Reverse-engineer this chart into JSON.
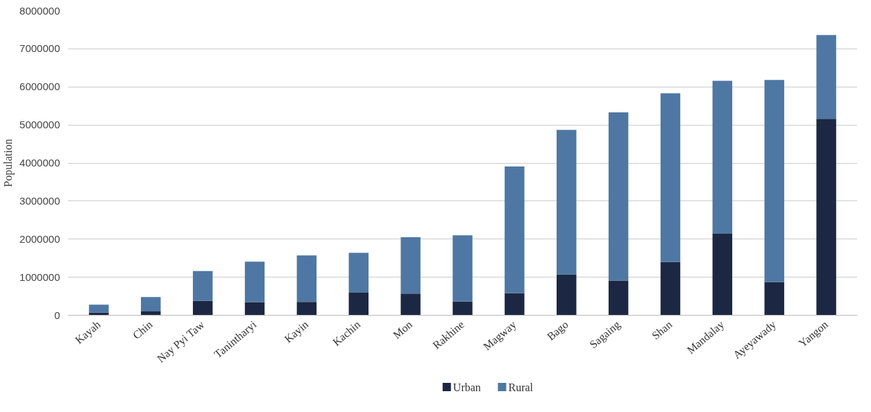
{
  "chart_data": {
    "type": "bar",
    "stacked": true,
    "ylabel": "Population",
    "categories": [
      "Kayah",
      "Chin",
      "Nay Pyi Taw",
      "Tanintharyi",
      "Kayin",
      "Kachin",
      "Mon",
      "Rakhine",
      "Magway",
      "Bago",
      "Sagaing",
      "Shan",
      "Mandalay",
      "Ayeyawady",
      "Yangon"
    ],
    "series": [
      {
        "name": "Urban",
        "color": "#1c2843",
        "values": [
          70000,
          100000,
          380000,
          340000,
          350000,
          590000,
          570000,
          360000,
          580000,
          1070000,
          910000,
          1400000,
          2140000,
          870000,
          5160000
        ]
      },
      {
        "name": "Rural",
        "color": "#4f77a3",
        "values": [
          210000,
          380000,
          780000,
          1070000,
          1220000,
          1050000,
          1480000,
          1740000,
          3330000,
          3800000,
          4420000,
          4430000,
          4020000,
          5310000,
          2200000
        ]
      }
    ],
    "ylim": [
      0,
      8000000
    ],
    "yticks": [
      0,
      1000000,
      2000000,
      3000000,
      4000000,
      5000000,
      6000000,
      7000000,
      8000000
    ],
    "grid": "y",
    "legend": "bottom"
  }
}
